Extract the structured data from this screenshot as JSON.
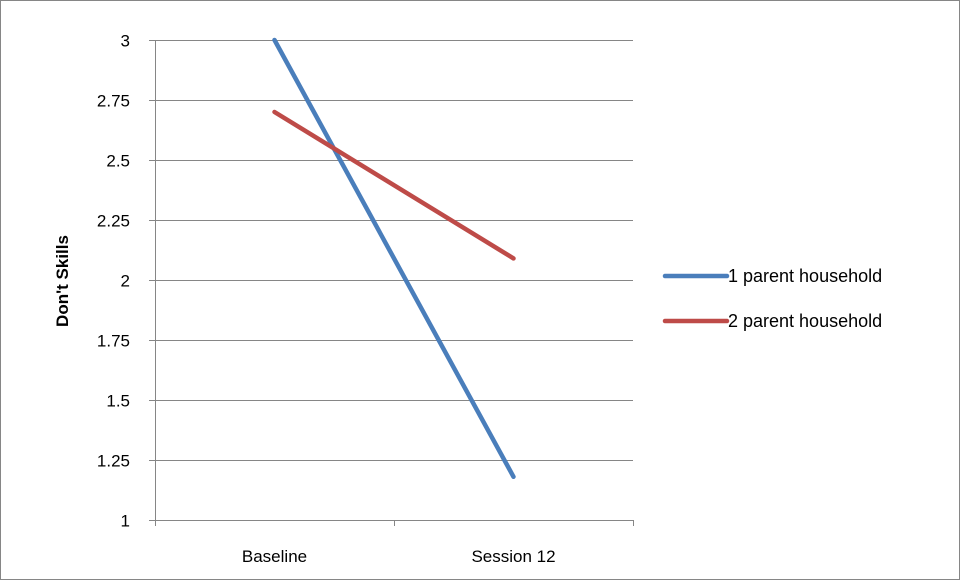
{
  "chart_data": {
    "type": "line",
    "categories": [
      "Baseline",
      "Session 12"
    ],
    "series": [
      {
        "name": "1 parent household",
        "values": [
          3.0,
          1.18
        ],
        "color": "#4a7ebb"
      },
      {
        "name": "2 parent household",
        "values": [
          2.7,
          2.09
        ],
        "color": "#be4b48"
      }
    ],
    "ylabel": "Don't Skills",
    "ylim": [
      1,
      3
    ],
    "yticks": [
      1,
      1.25,
      1.5,
      1.75,
      2,
      2.25,
      2.5,
      2.75,
      3
    ],
    "ytick_labels": [
      "1",
      "1.25",
      "1.5",
      "1.75",
      "2",
      "2.25",
      "2.5",
      "2.75",
      "3"
    ],
    "grid": true,
    "legend_position": "right"
  }
}
